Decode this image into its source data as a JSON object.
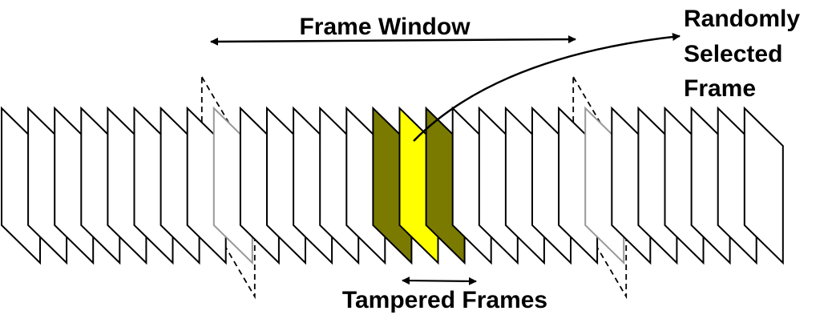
{
  "labels": {
    "frame_window": "Frame Window",
    "random_line1": "Randomly",
    "random_line2": "Selected",
    "random_line3": "Frame",
    "tampered": "Tampered Frames"
  },
  "frames": {
    "count": 29,
    "window_boundary_frames": [
      8,
      22
    ],
    "tampered_frames": [
      14,
      15,
      16
    ],
    "selected_frame": 15
  },
  "colors": {
    "frame_fill": "#ffffff",
    "frame_stroke": "#000000",
    "boundary_stroke": "#999999",
    "tampered_fill": "#7a7a00",
    "selected_fill": "#ffff00"
  }
}
